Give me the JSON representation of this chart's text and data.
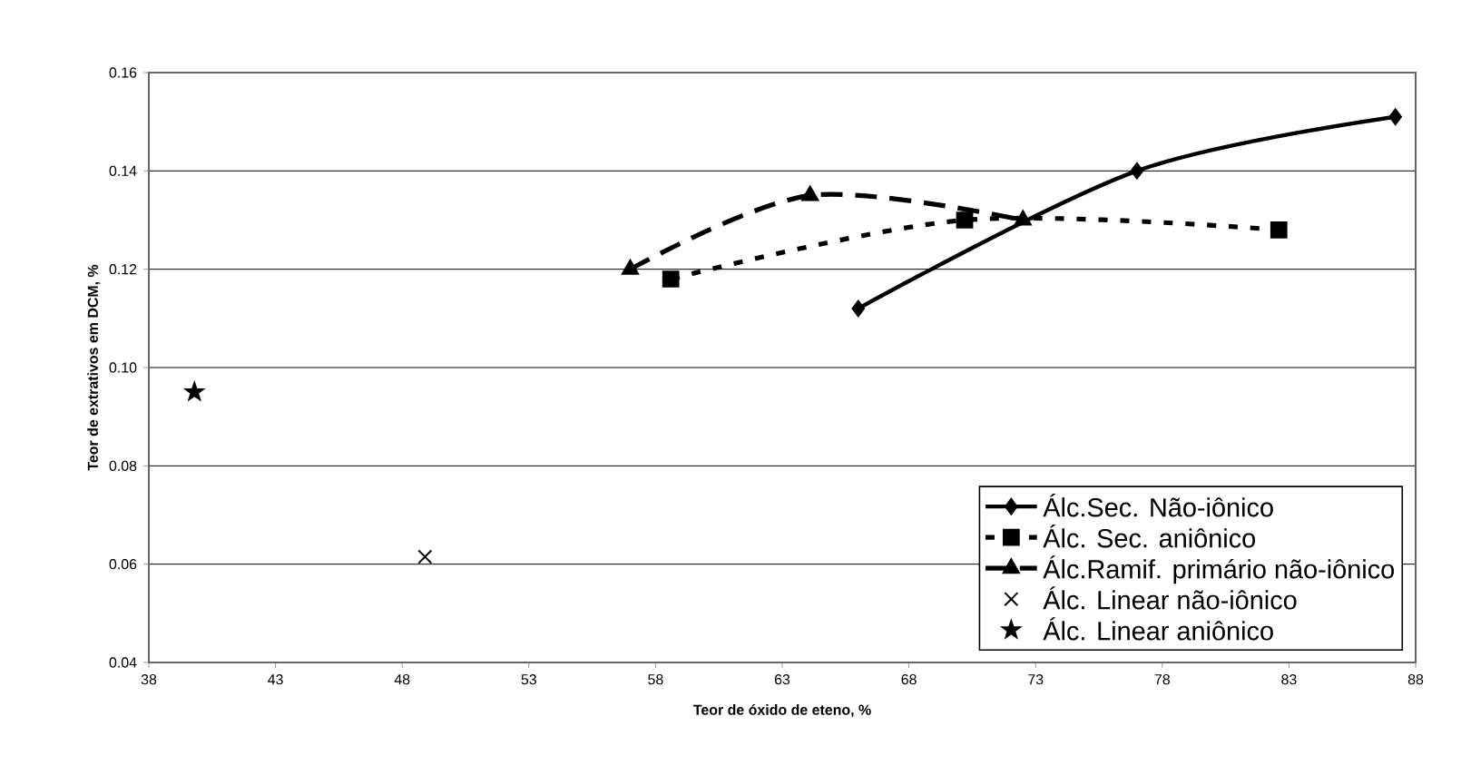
{
  "chart_data": {
    "type": "line",
    "xlabel": "Teor de óxido de eteno, %",
    "ylabel": "Teor de extrativos em DCM, %",
    "xlim": [
      38,
      88
    ],
    "xticks": [
      38,
      43,
      48,
      53,
      58,
      63,
      68,
      73,
      78,
      83,
      88
    ],
    "ylim": [
      0.04,
      0.16
    ],
    "yticks": [
      {
        "value": 0.04,
        "label": "0.04"
      },
      {
        "value": 0.06,
        "label": "0.06"
      },
      {
        "value": 0.08,
        "label": "0.08"
      },
      {
        "value": 0.1,
        "label": "0.10"
      },
      {
        "value": 0.12,
        "label": "0.12"
      },
      {
        "value": 0.14,
        "label": "0.14"
      },
      {
        "value": 0.16,
        "label": "0.16"
      }
    ],
    "grid": "y",
    "legend": "bottom right",
    "series": [
      {
        "name": "Álc.Sec. Não-iônico",
        "color": "#000000",
        "marker": "diamond",
        "line_style": "solid",
        "x": [
          66,
          77,
          87.2
        ],
        "values": [
          0.112,
          0.14,
          0.151
        ]
      },
      {
        "name": "Álc. Sec. aniônico",
        "color": "#000000",
        "marker": "square",
        "line_style": "dotted",
        "x": [
          58.6,
          70.2,
          82.6
        ],
        "values": [
          0.118,
          0.13,
          0.128
        ]
      },
      {
        "name": "Álc.Ramif. primário não-iônico",
        "color": "#000000",
        "marker": "triangle",
        "line_style": "dashed",
        "x": [
          57,
          64.1,
          72.5
        ],
        "values": [
          0.12,
          0.135,
          0.13
        ]
      },
      {
        "name": "Álc. Linear não-iônico",
        "type": "scatter",
        "color": "#000000",
        "marker": "cross",
        "x": [
          48.9
        ],
        "values": [
          0.0615
        ]
      },
      {
        "name": "Álc. Linear aniônico",
        "type": "scatter",
        "color": "#000000",
        "marker": "star",
        "x": [
          39.8
        ],
        "values": [
          0.095
        ]
      }
    ]
  }
}
